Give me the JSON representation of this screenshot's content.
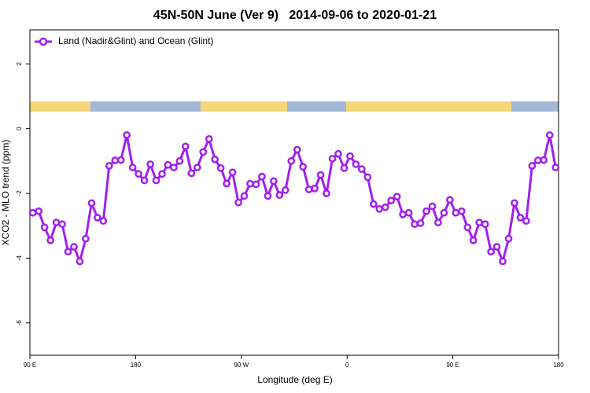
{
  "chart_data": {
    "type": "line",
    "title": "45N-50N June (Ver 9)   2014-09-06 to 2020-01-21",
    "x_label": "Longitude (deg E)",
    "y_label": "XCO2 - MLO trend (ppm)",
    "xlim": [
      90,
      540
    ],
    "ylim": [
      -7,
      3.05
    ],
    "xticks": [
      {
        "value": 90,
        "label": "90 E"
      },
      180,
      {
        "value": 270,
        "label": "90 W"
      },
      {
        "value": 360,
        "label": "0"
      },
      {
        "value": 450,
        "label": "90 E"
      },
      {
        "value": 540,
        "label": "180"
      }
    ],
    "yticks": [
      -6,
      -4,
      -2,
      0,
      2
    ],
    "legend": "top-left",
    "x": [
      92.5,
      97.5,
      102.5,
      107.5,
      112.5,
      117.5,
      122.5,
      127.5,
      132.5,
      137.5,
      142.5,
      147.5,
      152.5,
      157.5,
      162.5,
      167.5,
      172.5,
      177.5,
      182.5,
      187.5,
      192.5,
      197.5,
      202.5,
      207.5,
      212.5,
      217.5,
      222.5,
      227.5,
      232.5,
      237.5,
      242.5,
      247.5,
      252.5,
      257.5,
      262.5,
      267.5,
      272.5,
      277.5,
      282.5,
      287.5,
      292.5,
      297.5,
      302.5,
      307.5,
      312.5,
      317.5,
      322.5,
      327.5,
      332.5,
      337.5,
      342.5,
      347.5,
      352.5,
      357.5,
      362.5,
      367.5,
      372.5,
      377.5,
      382.5,
      387.5,
      392.5,
      397.5,
      402.5,
      407.5,
      412.5,
      417.5,
      422.5,
      427.5,
      432.5,
      437.5,
      442.5,
      447.5,
      452.5,
      457.5,
      462.5,
      467.5,
      472.5,
      477.5,
      482.5,
      487.5,
      492.5,
      497.5,
      502.5,
      507.5,
      512.5,
      517.5,
      522.5,
      527.5,
      532.5,
      537.5
    ],
    "series": [
      {
        "name": "Land (Nadir&Glint) and Ocean (Glint)",
        "color": "#a020f0",
        "values": [
          -2.6,
          -2.55,
          -3.05,
          -3.45,
          -2.9,
          -2.95,
          -3.8,
          -3.65,
          -4.1,
          -3.4,
          -2.3,
          -2.75,
          -2.85,
          -1.15,
          -0.98,
          -0.97,
          -0.2,
          -1.2,
          -1.4,
          -1.6,
          -1.1,
          -1.6,
          -1.4,
          -1.12,
          -1.2,
          -1.0,
          -0.55,
          -1.38,
          -1.2,
          -0.72,
          -0.32,
          -0.95,
          -1.22,
          -1.7,
          -1.35,
          -2.28,
          -2.08,
          -1.7,
          -1.72,
          -1.48,
          -2.08,
          -1.62,
          -2.05,
          -1.9,
          -1.0,
          -0.65,
          -1.18,
          -1.88,
          -1.85,
          -1.43,
          -2.0,
          -0.93,
          -0.78,
          -1.22,
          -0.85,
          -1.1,
          -1.25,
          -1.5,
          -2.33,
          -2.48,
          -2.43,
          -2.22,
          -2.1,
          -2.65,
          -2.6,
          -2.95,
          -2.92,
          -2.55,
          -2.4,
          -2.9,
          -2.6,
          -2.2,
          -2.6,
          -2.55,
          -3.05,
          -3.45,
          -2.9,
          -2.95,
          -3.8,
          -3.65,
          -4.1,
          -3.4,
          -2.3,
          -2.75,
          -2.85,
          -1.15,
          -0.98,
          -0.97,
          -0.2,
          -1.2
        ]
      }
    ]
  }
}
